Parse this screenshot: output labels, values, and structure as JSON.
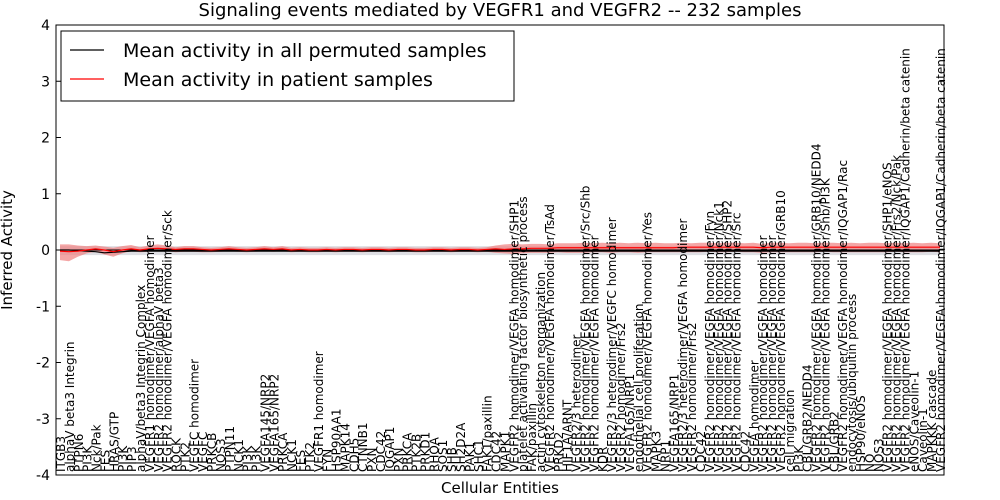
{
  "chart_data": {
    "type": "line",
    "title": "Signaling events mediated by VEGFR1 and VEGFR2 -- 232 samples",
    "xlabel": "Cellular Entities",
    "ylabel": "Inferred Activity",
    "ylim": [
      -4,
      4
    ],
    "yticks": [
      -4,
      -3,
      -2,
      -1,
      0,
      1,
      2,
      3,
      4
    ],
    "grid": false,
    "legend_position": "top-left",
    "colors": {
      "permuted_line": "#000000",
      "patient_line": "#ff0000",
      "patient_band": "#f08080",
      "permuted_band": "#c8c8d0"
    },
    "categories": [
      "ITGB3",
      "alphaV beta3 Integrin",
      "PTPN6",
      "PI3K",
      "Nck/Pak",
      "FES",
      "HRAS/GTP",
      "PI3K",
      "PIP3",
      "alphaV/beta3 Integrin Complex",
      "VEGFR1 homodimer/VEGFA homodimer",
      "VEGFR2 homodimer/alphaV beta3",
      "VEGFR2 homodimer/VEGFA homodimer/Sck",
      "ROCK",
      "PTK2",
      "VEGFC homodimer",
      "VEGFC",
      "PRKCB",
      "NOS3",
      "PTPN11",
      "NCK1",
      "PI3K",
      "PI3K",
      "VEGFA145/NRP2",
      "VEGFA165/NRP2",
      "PRKCA",
      "NCK1",
      "FES",
      "PTK2",
      "VEGFR1 homodimer",
      "FYN",
      "HSP90AA1",
      "MAPK14",
      "CDH5",
      "CTNNB1",
      "PXN",
      "CDC42",
      "IQGAP1",
      "PXN",
      "PRKCA",
      "PTK2B",
      "PRKD1",
      "RHOA",
      "SOS1",
      "SHB",
      "SH2D2A",
      "PAK1",
      "SHC1",
      "FAK1/paxillin",
      "CDC42",
      "MAPK1",
      "VEGFR2 homodimer/VEGFA homodimer/SHP1",
      "platelet activating factor biosynthetic process",
      "FAK/paxillin",
      "actin cytoskeleton reorganization",
      "VEGFR2 homodimer/VEGFA homodimer/TsAd",
      "PRKD2",
      "HIF1A/ARNT",
      "VEGFR2/3 heterodimer",
      "VEGFR2 homodimer/VEGFA homodimer/Src/Shb",
      "VEGFR2 homodimer/VEGFA homodimer",
      "KDR",
      "VEGFR2/3 heterodimer/VEGFC homodimer",
      "VEGFR2 homodimer/Frs2",
      "VEGFA165/NRP1",
      "endothelial cell proliferation",
      "VEGFR2 homodimer/VEGFA homodimer/Yes",
      "MAPK3",
      "NRP1",
      "VEGFA165/NRP1",
      "VEGFR2/3 heterodimer/VEGFA homodimer",
      "VEGFR2 homodimer/Frs2",
      "CDC42",
      "VEGFR2 homodimer/VEGFA homodimer/Fyn",
      "VEGFR2 homodimer/VEGFA homodimer/Nck1",
      "VEGFR2 homodimer/VEGFA homodimer/SHP2",
      "VEGFR2 homodimer/VEGFA homodimer/Src",
      "CDC42",
      "VEGFA homodimer",
      "VEGFR2 homodimer/VEGFA homodimer",
      "VEGFR2 homodimer/VEGFA homodimer",
      "VEGFR2 homodimer/VEGFA homodimer/GRB10",
      "cell migration",
      "PI3K",
      "CBL/GRB2/NEDD4",
      "VEGFR2 homodimer/VEGFA homodimer/GRB10/NEDD4",
      "VEGFR2 homodimer/VEGFA homodimer/Shb/PI3K",
      "CBL/GRB2",
      "VEGFR2 homodimer/VEGFA homodimer/IQGAP1/Rac",
      "endocytosis/ubiquitin process",
      "HSP90/eNOS",
      "NO",
      "NOS3",
      "VEGFR2 homodimer/VEGFA homodimer/SHP1/eNOS",
      "VEGFR2 homodimer/VEGFA homodimer/Frs2/Nck/Pak",
      "VEGFR2 homodimer/VEGFA homodimer/IQGAP1/Cadherin/beta catenin",
      "eNOS/Caveolin-1",
      "Caveolin-1",
      "MAPKKK cascade",
      "VEGFR2 homodimer/VEGFA homodimer/IQGAP1/Cadherin/beta catenin"
    ],
    "series": [
      {
        "name": "Mean activity in all permuted samples",
        "color": "#000000",
        "values": [
          0.0,
          0.0,
          -0.01,
          -0.02,
          -0.03,
          -0.05,
          -0.04,
          -0.03,
          -0.02,
          -0.02,
          -0.02,
          -0.02,
          -0.02,
          -0.02,
          -0.02,
          -0.02,
          -0.02,
          -0.02,
          -0.02,
          -0.02,
          -0.02,
          -0.02,
          -0.02,
          -0.02,
          -0.02,
          -0.02,
          -0.02,
          -0.02,
          -0.02,
          -0.02,
          -0.02,
          -0.02,
          -0.02,
          -0.02,
          -0.02,
          -0.02,
          -0.02,
          -0.02,
          -0.02,
          -0.02,
          -0.02,
          -0.02,
          -0.02,
          -0.02,
          -0.02,
          -0.02,
          -0.02,
          -0.02,
          -0.02,
          -0.02,
          -0.02,
          -0.02,
          -0.02,
          -0.02,
          -0.02,
          -0.02,
          -0.02,
          -0.02,
          -0.02,
          -0.02,
          -0.02,
          -0.02,
          -0.02,
          -0.02,
          -0.02,
          -0.02,
          -0.02,
          -0.02,
          -0.02,
          -0.02,
          -0.02,
          -0.02,
          -0.02,
          -0.02,
          -0.02,
          -0.02,
          -0.02,
          -0.02,
          -0.02,
          -0.02,
          -0.02,
          -0.02,
          -0.02,
          -0.02,
          -0.02,
          -0.02,
          -0.02,
          -0.02,
          -0.02,
          -0.02,
          -0.02,
          -0.02,
          -0.02,
          -0.02,
          -0.02,
          -0.02,
          -0.02,
          -0.02,
          -0.02,
          -0.02
        ]
      },
      {
        "name": "Mean activity in patient samples",
        "color": "#ff0000",
        "values": [
          -0.02,
          -0.03,
          -0.02,
          0.0,
          0.02,
          0.0,
          -0.03,
          0.0,
          0.02,
          0.0,
          0.02,
          0.03,
          0.02,
          0.01,
          0.02,
          0.02,
          0.01,
          0.0,
          0.01,
          0.02,
          0.01,
          0.0,
          0.01,
          0.02,
          0.01,
          0.02,
          0.0,
          0.01,
          0.0,
          0.0,
          0.01,
          0.0,
          0.01,
          0.01,
          0.0,
          0.01,
          0.01,
          0.0,
          0.01,
          0.01,
          0.0,
          0.0,
          0.01,
          0.01,
          0.0,
          0.01,
          0.01,
          0.0,
          0.01,
          0.02,
          0.01,
          0.02,
          0.02,
          0.03,
          0.03,
          0.03,
          0.04,
          0.04,
          0.04,
          0.04,
          0.04,
          0.04,
          0.04,
          0.04,
          0.04,
          0.04,
          0.04,
          0.04,
          0.04,
          0.04,
          0.05,
          0.05,
          0.05,
          0.05,
          0.05,
          0.05,
          0.05,
          0.05,
          0.05,
          0.04,
          0.05,
          0.05,
          0.05,
          0.05,
          0.05,
          0.05,
          0.05,
          0.05,
          0.05,
          0.05,
          0.05,
          0.05,
          0.05,
          0.05,
          0.05,
          0.05,
          0.05,
          0.05,
          0.05,
          0.05
        ]
      }
    ],
    "patient_band": {
      "low": [
        -0.18,
        -0.2,
        -0.12,
        -0.06,
        -0.03,
        -0.08,
        -0.12,
        -0.06,
        -0.02,
        -0.04,
        -0.03,
        -0.02,
        -0.02,
        -0.04,
        -0.03,
        -0.03,
        -0.04,
        -0.04,
        -0.03,
        -0.02,
        -0.03,
        -0.04,
        -0.03,
        -0.02,
        -0.03,
        -0.02,
        -0.04,
        -0.03,
        -0.04,
        -0.04,
        -0.03,
        -0.04,
        -0.03,
        -0.03,
        -0.04,
        -0.03,
        -0.03,
        -0.04,
        -0.03,
        -0.03,
        -0.04,
        -0.04,
        -0.03,
        -0.03,
        -0.04,
        -0.03,
        -0.03,
        -0.04,
        -0.03,
        -0.05,
        -0.06,
        -0.07,
        -0.06,
        -0.05,
        -0.05,
        -0.05,
        -0.04,
        -0.05,
        -0.05,
        -0.05,
        -0.04,
        -0.04,
        -0.05,
        -0.04,
        -0.04,
        -0.05,
        -0.04,
        -0.04,
        -0.04,
        -0.04,
        -0.04,
        -0.04,
        -0.04,
        -0.03,
        -0.04,
        -0.04,
        -0.03,
        -0.04,
        -0.04,
        -0.05,
        -0.04,
        -0.04,
        -0.04,
        -0.04,
        -0.04,
        -0.04,
        -0.03,
        -0.04,
        -0.04,
        -0.04,
        -0.04,
        -0.04,
        -0.04,
        -0.04,
        -0.03,
        -0.04,
        -0.04,
        -0.04,
        -0.03,
        -0.04
      ],
      "high": [
        0.1,
        0.1,
        0.08,
        0.07,
        0.08,
        0.06,
        0.04,
        0.07,
        0.09,
        0.05,
        0.08,
        0.1,
        0.08,
        0.05,
        0.07,
        0.07,
        0.05,
        0.04,
        0.05,
        0.07,
        0.05,
        0.04,
        0.05,
        0.07,
        0.05,
        0.07,
        0.04,
        0.05,
        0.04,
        0.04,
        0.05,
        0.04,
        0.05,
        0.05,
        0.04,
        0.05,
        0.05,
        0.04,
        0.05,
        0.05,
        0.04,
        0.04,
        0.05,
        0.05,
        0.04,
        0.05,
        0.05,
        0.04,
        0.05,
        0.08,
        0.1,
        0.11,
        0.1,
        0.11,
        0.11,
        0.1,
        0.12,
        0.12,
        0.12,
        0.13,
        0.12,
        0.13,
        0.12,
        0.13,
        0.12,
        0.13,
        0.12,
        0.13,
        0.12,
        0.12,
        0.13,
        0.12,
        0.13,
        0.13,
        0.12,
        0.13,
        0.13,
        0.12,
        0.13,
        0.11,
        0.13,
        0.13,
        0.12,
        0.13,
        0.13,
        0.12,
        0.13,
        0.13,
        0.12,
        0.13,
        0.12,
        0.13,
        0.13,
        0.12,
        0.13,
        0.12,
        0.13,
        0.12,
        0.13,
        0.12
      ]
    },
    "permuted_band": {
      "low": -0.09,
      "high": 0.07
    }
  }
}
